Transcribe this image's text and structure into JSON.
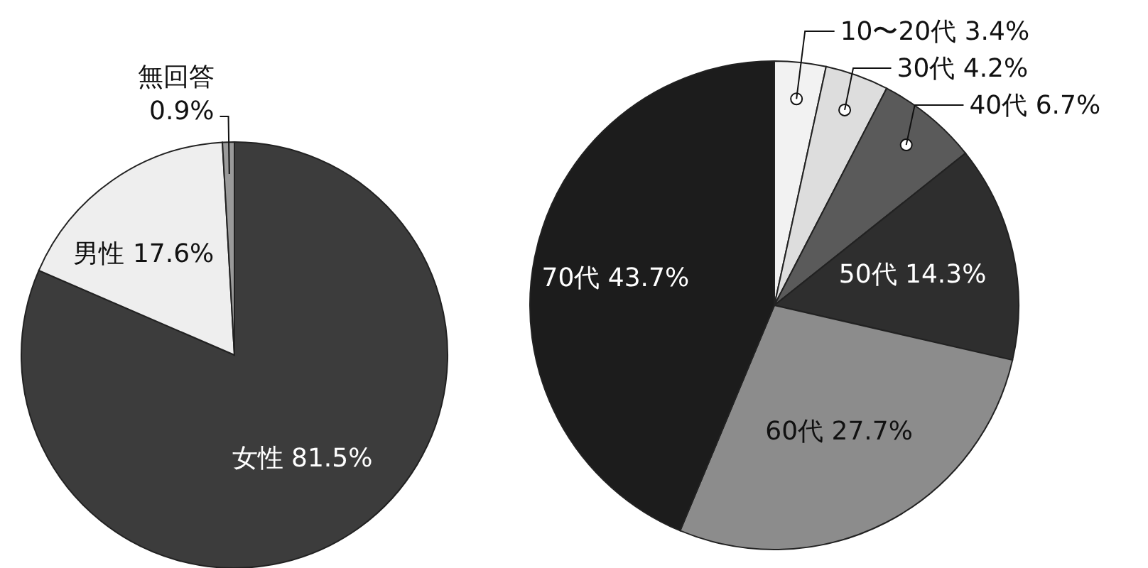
{
  "chart_data": [
    {
      "type": "pie",
      "categories": [
        "女性",
        "男性",
        "無回答"
      ],
      "values": [
        81.5,
        17.6,
        0.9
      ],
      "value_labels": [
        "81.5%",
        "17.6%",
        "0.9%"
      ],
      "colors": [
        "#3c3c3c",
        "#eeeeee",
        "#9a9a9a"
      ]
    },
    {
      "type": "pie",
      "categories": [
        "10〜20代",
        "30代",
        "40代",
        "50代",
        "60代",
        "70代"
      ],
      "values": [
        3.4,
        4.2,
        6.7,
        14.3,
        27.7,
        43.7
      ],
      "value_labels": [
        "3.4%",
        "4.2%",
        "6.7%",
        "14.3%",
        "27.7%",
        "43.7%"
      ],
      "colors": [
        "#f2f2f2",
        "#dddddd",
        "#5a5a5a",
        "#2e2e2e",
        "#8c8c8c",
        "#1c1c1c"
      ]
    }
  ]
}
